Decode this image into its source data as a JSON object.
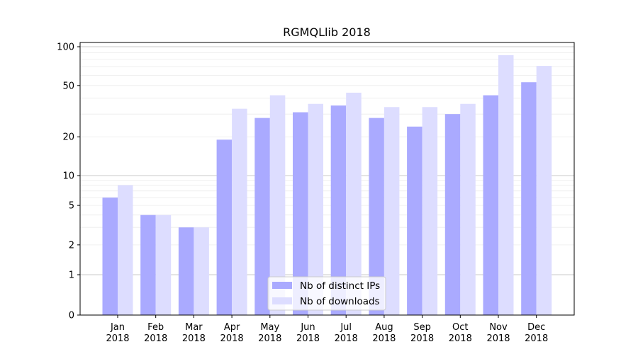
{
  "chart_data": {
    "type": "bar",
    "title": "RGMQLlib 2018",
    "xlabel": "",
    "ylabel": "",
    "yscale": "symlog",
    "ylim": [
      0,
      100
    ],
    "grid": true,
    "legend_position": "bottom-center",
    "categories": [
      {
        "month": "Jan",
        "year": "2018"
      },
      {
        "month": "Feb",
        "year": "2018"
      },
      {
        "month": "Mar",
        "year": "2018"
      },
      {
        "month": "Apr",
        "year": "2018"
      },
      {
        "month": "May",
        "year": "2018"
      },
      {
        "month": "Jun",
        "year": "2018"
      },
      {
        "month": "Jul",
        "year": "2018"
      },
      {
        "month": "Aug",
        "year": "2018"
      },
      {
        "month": "Sep",
        "year": "2018"
      },
      {
        "month": "Oct",
        "year": "2018"
      },
      {
        "month": "Nov",
        "year": "2018"
      },
      {
        "month": "Dec",
        "year": "2018"
      }
    ],
    "series": [
      {
        "name": "Nb of distinct IPs",
        "color": "#aaaaff",
        "values": [
          6,
          4,
          3,
          19,
          28,
          31,
          35,
          28,
          24,
          30,
          42,
          53
        ]
      },
      {
        "name": "Nb of downloads",
        "color": "#ddddff",
        "values": [
          8,
          4,
          3,
          33,
          42,
          36,
          44,
          34,
          34,
          36,
          86,
          71
        ]
      }
    ],
    "yticks": [
      {
        "value": 0,
        "label": "0"
      },
      {
        "value": 1,
        "label": "1"
      },
      {
        "value": 2,
        "label": "2"
      },
      {
        "value": 5,
        "label": "5"
      },
      {
        "value": 10,
        "label": "10"
      },
      {
        "value": 20,
        "label": "20"
      },
      {
        "value": 50,
        "label": "50"
      },
      {
        "value": 100,
        "label": "100"
      }
    ]
  }
}
